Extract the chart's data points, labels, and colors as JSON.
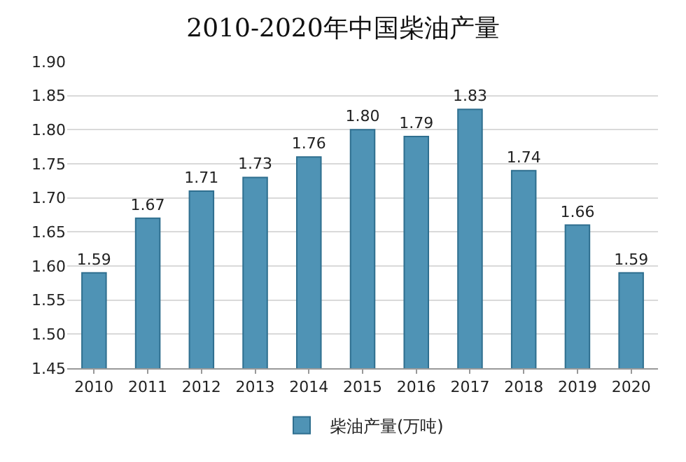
{
  "chart_data": {
    "type": "bar",
    "title": "2010-2020年中国柴油产量",
    "categories": [
      "2010",
      "2011",
      "2012",
      "2013",
      "2014",
      "2015",
      "2016",
      "2017",
      "2018",
      "2019",
      "2020"
    ],
    "series": [
      {
        "name": "柴油产量(万吨)",
        "color": "#4f93b5",
        "values": [
          1.59,
          1.67,
          1.71,
          1.73,
          1.76,
          1.8,
          1.79,
          1.83,
          1.74,
          1.66,
          1.59
        ]
      }
    ],
    "ylim": [
      1.45,
      1.9
    ],
    "yticks": [
      {
        "value": 1.45,
        "label": "1.45"
      },
      {
        "value": 1.5,
        "label": "1.50"
      },
      {
        "value": 1.55,
        "label": "1.55"
      },
      {
        "value": 1.6,
        "label": "1.60"
      },
      {
        "value": 1.65,
        "label": "1.65"
      },
      {
        "value": 1.7,
        "label": "1.70"
      },
      {
        "value": 1.75,
        "label": "1.75"
      },
      {
        "value": 1.8,
        "label": "1.80"
      },
      {
        "value": 1.85,
        "label": "1.85"
      },
      {
        "value": 1.9,
        "label": "1.90"
      }
    ],
    "value_labels": [
      "1.59",
      "1.67",
      "1.71",
      "1.73",
      "1.76",
      "1.80",
      "1.79",
      "1.83",
      "1.74",
      "1.66",
      "1.59"
    ],
    "grid": "y",
    "legend": "bottom"
  }
}
